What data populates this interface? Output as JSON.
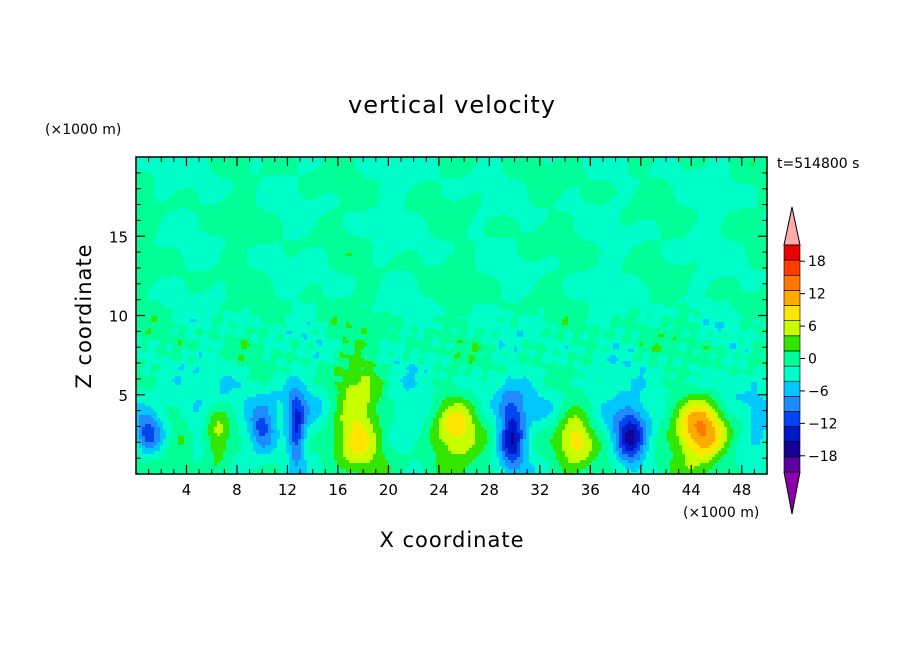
{
  "chart_data": {
    "type": "heatmap",
    "title": "vertical velocity",
    "xlabel": "X coordinate",
    "ylabel": "Z coordinate",
    "x_unit": "(×1000 m)",
    "y_unit": "(×1000 m)",
    "time_label": "t=514800 s",
    "xlim": [
      0,
      50
    ],
    "ylim": [
      0,
      20
    ],
    "x_ticks": [
      4,
      8,
      12,
      16,
      20,
      24,
      28,
      32,
      36,
      40,
      44,
      48
    ],
    "y_ticks": [
      5,
      10,
      15
    ],
    "colorbar": {
      "levels": [
        -21,
        -18,
        -15,
        -12,
        -9,
        -6,
        -3,
        0,
        3,
        6,
        9,
        12,
        15,
        18,
        21
      ],
      "colors": [
        "#5a00a0",
        "#140096",
        "#0019c8",
        "#0046f0",
        "#1e8cff",
        "#00c8ff",
        "#00ffc8",
        "#00ff96",
        "#32e600",
        "#c8ff00",
        "#ffe600",
        "#ffaa00",
        "#ff7800",
        "#ff3c00",
        "#e60000"
      ],
      "tick_values": [
        -18,
        -12,
        -6,
        0,
        6,
        12,
        18
      ],
      "tick_labels": [
        "−18",
        "−12",
        "−6",
        "0",
        "6",
        "12",
        "18"
      ],
      "under_color": "#8c00aa",
      "over_color": "#ffaaaa"
    },
    "features": [
      {
        "x": 1.0,
        "z": 2.5,
        "w": -10,
        "sx": 1.0,
        "sz": 1.3
      },
      {
        "x": 3.5,
        "z": 2.6,
        "w": 4,
        "sx": 0.8,
        "sz": 1.3
      },
      {
        "x": 6.5,
        "z": 2.4,
        "w": 9,
        "sx": 1.0,
        "sz": 1.8
      },
      {
        "x": 10.0,
        "z": 2.8,
        "w": -11,
        "sx": 1.1,
        "sz": 1.4
      },
      {
        "x": 12.7,
        "z": 2.8,
        "w": -12,
        "sx": 0.7,
        "sz": 2.2
      },
      {
        "x": 17.5,
        "z": 3.5,
        "w": 11,
        "sx": 2.0,
        "sz": 3.4
      },
      {
        "x": 25.2,
        "z": 2.8,
        "w": 11,
        "sx": 2.0,
        "sz": 2.3
      },
      {
        "x": 29.8,
        "z": 2.4,
        "w": -14,
        "sx": 1.0,
        "sz": 2.2
      },
      {
        "x": 34.8,
        "z": 2.4,
        "w": 10,
        "sx": 1.5,
        "sz": 2.0
      },
      {
        "x": 39.2,
        "z": 2.3,
        "w": -13,
        "sx": 1.2,
        "sz": 1.8
      },
      {
        "x": 44.8,
        "z": 2.8,
        "w": 16,
        "sx": 2.1,
        "sz": 2.3
      },
      {
        "x": 49.3,
        "z": 2.8,
        "w": -5,
        "sx": 0.8,
        "sz": 1.4
      }
    ]
  }
}
